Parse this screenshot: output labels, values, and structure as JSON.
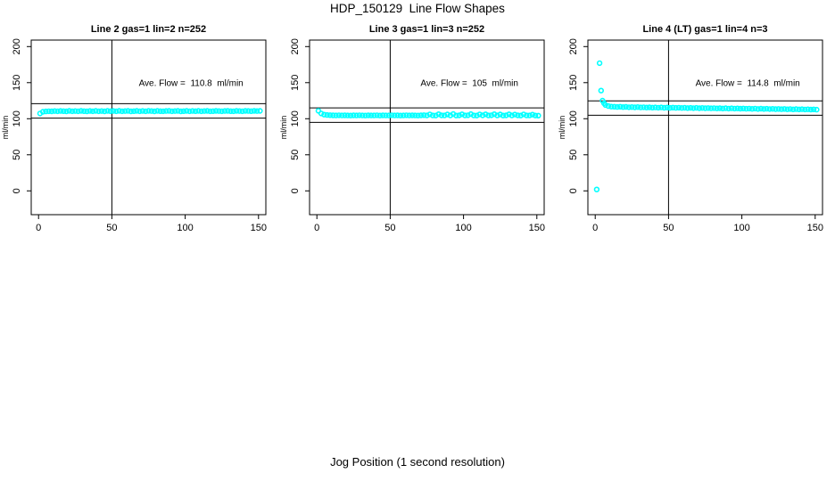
{
  "title": "HDP_150129  Line Flow Shapes",
  "xlabel": "Jog Position (1 second resolution)",
  "axes": {
    "xlim": [
      -5,
      155
    ],
    "ylim": [
      -33,
      209
    ],
    "xticks": [
      0,
      50,
      100,
      150
    ],
    "yticks": [
      0,
      50,
      100,
      150,
      200
    ],
    "ylab": "ml/min",
    "grid": false,
    "legend": "none",
    "marker_color": "#00FFFF",
    "line_color": "#000000"
  },
  "chart_data": [
    {
      "type": "scatter",
      "title": "Line 2 gas=1 lin=2 n=252",
      "annotation": "Ave. Flow =  110.8  ml/min",
      "ave_flow_ml_min": 110.8,
      "n": 252,
      "ref_lines_y": [
        100.8,
        120.8
      ],
      "vline_x": 50,
      "x": [
        1,
        3,
        5,
        7,
        9,
        11,
        13,
        15,
        17,
        19,
        21,
        23,
        25,
        27,
        29,
        31,
        33,
        35,
        37,
        39,
        41,
        43,
        45,
        47,
        49,
        51,
        53,
        55,
        57,
        59,
        61,
        63,
        65,
        67,
        69,
        71,
        73,
        75,
        77,
        79,
        81,
        83,
        85,
        87,
        89,
        91,
        93,
        95,
        97,
        99,
        101,
        103,
        105,
        107,
        109,
        111,
        113,
        115,
        117,
        119,
        121,
        123,
        125,
        127,
        129,
        131,
        133,
        135,
        137,
        139,
        141,
        143,
        145,
        147,
        149,
        151
      ],
      "y": [
        107.3,
        109.6,
        110.1,
        110.4,
        110.2,
        110.6,
        110.3,
        110.7,
        110.5,
        110.2,
        110.8,
        110.4,
        110.6,
        110.3,
        110.9,
        110.5,
        110.2,
        110.7,
        110.4,
        110.8,
        110.3,
        110.6,
        110.2,
        110.9,
        110.5,
        110.7,
        110.3,
        110.8,
        110.4,
        110.6,
        110.9,
        110.2,
        110.5,
        110.8,
        110.3,
        110.7,
        110.4,
        110.9,
        110.6,
        110.2,
        110.8,
        110.5,
        110.3,
        110.7,
        110.9,
        110.4,
        110.6,
        110.8,
        110.2,
        110.5,
        110.9,
        110.3,
        110.7,
        110.5,
        110.8,
        110.4,
        110.6,
        110.9,
        110.3,
        110.5,
        110.8,
        110.6,
        110.4,
        110.7,
        110.9,
        110.5,
        110.3,
        110.8,
        110.6,
        110.4,
        110.9,
        110.7,
        110.5,
        110.8,
        110.6,
        110.9
      ]
    },
    {
      "type": "scatter",
      "title": "Line 3 gas=1 lin=3 n=252",
      "annotation": "Ave. Flow =  105  ml/min",
      "ave_flow_ml_min": 105,
      "n": 252,
      "ref_lines_y": [
        95,
        115
      ],
      "vline_x": 50,
      "x": [
        1,
        3,
        5,
        7,
        9,
        11,
        13,
        15,
        17,
        19,
        21,
        23,
        25,
        27,
        29,
        31,
        33,
        35,
        37,
        39,
        41,
        43,
        45,
        47,
        49,
        51,
        53,
        55,
        57,
        59,
        61,
        63,
        65,
        67,
        69,
        71,
        73,
        75,
        77,
        79,
        81,
        83,
        85,
        87,
        89,
        91,
        93,
        95,
        97,
        99,
        101,
        103,
        105,
        107,
        109,
        111,
        113,
        115,
        117,
        119,
        121,
        123,
        125,
        127,
        129,
        131,
        133,
        135,
        137,
        139,
        141,
        143,
        145,
        147,
        149,
        151
      ],
      "y": [
        111.0,
        107.2,
        105.6,
        105.2,
        104.9,
        104.7,
        104.6,
        104.8,
        104.5,
        104.7,
        104.6,
        104.4,
        104.7,
        104.5,
        104.8,
        104.6,
        104.4,
        104.7,
        104.6,
        104.5,
        104.8,
        104.4,
        104.7,
        104.5,
        104.6,
        104.8,
        104.5,
        104.7,
        104.4,
        104.6,
        104.8,
        104.5,
        104.7,
        104.6,
        104.4,
        104.7,
        104.9,
        104.5,
        106.0,
        104.6,
        104.4,
        106.3,
        104.7,
        104.5,
        105.9,
        104.6,
        106.5,
        104.4,
        104.7,
        106.1,
        104.5,
        104.8,
        106.4,
        104.6,
        104.4,
        106.0,
        104.7,
        106.2,
        104.5,
        104.8,
        106.3,
        104.6,
        105.9,
        104.4,
        104.7,
        106.1,
        104.5,
        105.8,
        104.7,
        104.4,
        106.0,
        104.6,
        104.5,
        105.7,
        104.4,
        104.3
      ]
    },
    {
      "type": "scatter",
      "title": "Line 4 (LT) gas=1 lin=4 n=3",
      "annotation": "Ave. Flow =  114.8  ml/min",
      "ave_flow_ml_min": 114.8,
      "n": 3,
      "ref_lines_y": [
        104.8,
        124.8
      ],
      "vline_x": 50,
      "x": [
        1,
        3,
        4,
        5,
        6,
        7,
        9,
        11,
        13,
        15,
        17,
        19,
        21,
        23,
        25,
        27,
        29,
        31,
        33,
        35,
        37,
        39,
        41,
        43,
        45,
        47,
        49,
        51,
        53,
        55,
        57,
        59,
        61,
        63,
        65,
        67,
        69,
        71,
        73,
        75,
        77,
        79,
        81,
        83,
        85,
        87,
        89,
        91,
        93,
        95,
        97,
        99,
        101,
        103,
        105,
        107,
        109,
        111,
        113,
        115,
        117,
        119,
        121,
        123,
        125,
        127,
        129,
        131,
        133,
        135,
        137,
        139,
        141,
        143,
        145,
        147,
        149,
        151
      ],
      "y": [
        2,
        177,
        139,
        125,
        121.5,
        119,
        117.5,
        116.8,
        116.6,
        116.3,
        116.6,
        116.1,
        116.4,
        115.9,
        116.2,
        115.8,
        116.1,
        115.6,
        115.9,
        115.5,
        115.8,
        115.4,
        115.7,
        115.3,
        115.6,
        115.2,
        115.5,
        115.1,
        115.4,
        115.0,
        115.3,
        114.9,
        115.2,
        114.8,
        115.1,
        114.7,
        115.0,
        114.6,
        114.9,
        114.5,
        114.8,
        114.4,
        114.7,
        114.3,
        114.6,
        114.2,
        114.5,
        114.1,
        114.4,
        114.0,
        114.3,
        113.9,
        114.2,
        113.8,
        114.1,
        113.7,
        114.0,
        113.6,
        113.9,
        113.5,
        113.8,
        113.4,
        113.7,
        113.3,
        113.6,
        113.2,
        113.5,
        113.1,
        113.4,
        113.0,
        113.3,
        112.9,
        113.2,
        112.8,
        113.1,
        112.7,
        113.0,
        112.6
      ]
    }
  ]
}
